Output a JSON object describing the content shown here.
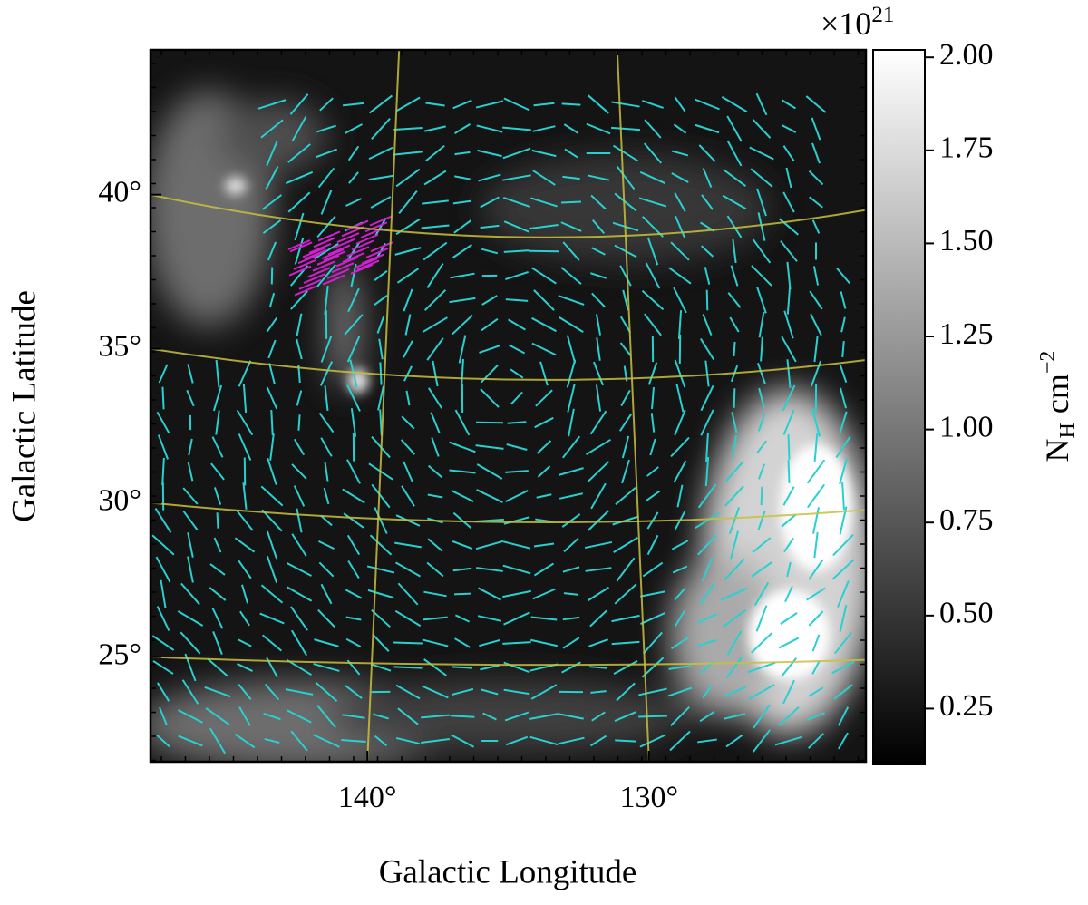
{
  "chart_data": {
    "type": "map",
    "x_label": "Galactic Longitude",
    "y_label": "Galactic Latitude",
    "xlim": [
      147.7,
      122.3
    ],
    "ylim": [
      21.6,
      44.7
    ],
    "xticks": [
      {
        "value": 140,
        "label": "140°"
      },
      {
        "value": 130,
        "label": "130°"
      }
    ],
    "yticks": [
      {
        "value": 25,
        "label": "25°"
      },
      {
        "value": 30,
        "label": "30°"
      },
      {
        "value": 35,
        "label": "35°"
      },
      {
        "value": 40,
        "label": "40°"
      }
    ],
    "grid": true,
    "grid_color": "#c8c040",
    "colorbar": {
      "clim": [
        0.1,
        2.02
      ],
      "cticks": [
        {
          "value": 0.25,
          "label": "0.25"
        },
        {
          "value": 0.5,
          "label": "0.50"
        },
        {
          "value": 0.75,
          "label": "0.75"
        },
        {
          "value": 1.0,
          "label": "1.00"
        },
        {
          "value": 1.25,
          "label": "1.25"
        },
        {
          "value": 1.5,
          "label": "1.50"
        },
        {
          "value": 1.75,
          "label": "1.75"
        },
        {
          "value": 2.0,
          "label": "2.00"
        }
      ],
      "multiplier": {
        "base": "×10",
        "exponent": "21"
      },
      "label": {
        "symbol": "N",
        "subscript": "H",
        "unit": "cm",
        "exponent": "−2"
      },
      "colormap": [
        "#000000",
        "#ffffff"
      ]
    },
    "vector_color": "#2ad0d0",
    "highlight_color": "#d020d0"
  }
}
